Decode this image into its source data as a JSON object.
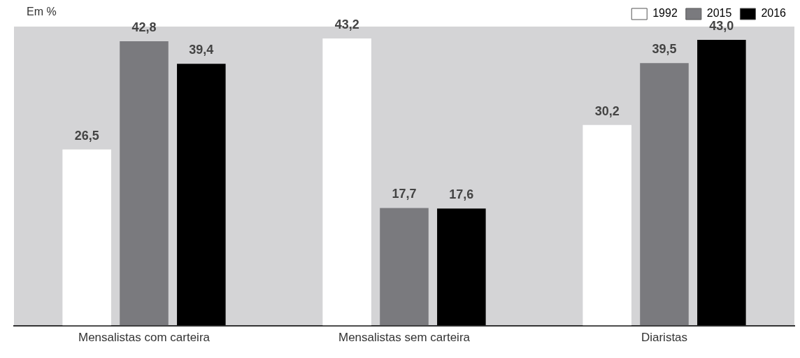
{
  "chart_data": {
    "type": "bar",
    "ylabel": "Em %",
    "categories": [
      "Mensalistas com carteira",
      "Mensalistas sem carteira",
      "Diaristas"
    ],
    "series": [
      {
        "name": "1992",
        "color": "#ffffff",
        "values": [
          26.5,
          43.2,
          30.2
        ],
        "value_labels": [
          "26,5",
          "43,2",
          "30,2"
        ]
      },
      {
        "name": "2015",
        "color": "#7a7a7e",
        "values": [
          42.8,
          17.7,
          39.5
        ],
        "value_labels": [
          "42,8",
          "17,7",
          "39,5"
        ]
      },
      {
        "name": "2016",
        "color": "#000000",
        "values": [
          39.4,
          17.6,
          43.0
        ],
        "value_labels": [
          "39,4",
          "17,6",
          "43,0"
        ]
      }
    ],
    "tick_labels": "x",
    "grid": false,
    "legend": "top right"
  }
}
